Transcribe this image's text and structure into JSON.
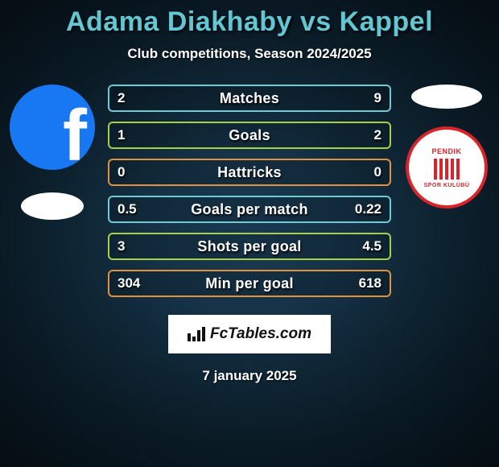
{
  "title_color": "#63c6d0",
  "header": {
    "title": "Adama Diakhaby vs Kappel",
    "subtitle": "Club competitions, Season 2024/2025"
  },
  "left": {
    "avatar_bg": "#1877f2",
    "club_shape_bg": "#ffffff"
  },
  "right": {
    "top_shape_bg": "#ffffff",
    "badge": {
      "border_color": "#d8242a",
      "stripe_color": "#d8242a",
      "text_top": "PENDIK",
      "text_bottom": "SPOR KULÜBÜ"
    }
  },
  "bars": {
    "colors": [
      "#6ccbd4",
      "#a6cf4a",
      "#e0923e",
      "#6ccbd4",
      "#a6cf4a",
      "#e0923e"
    ],
    "rows": [
      {
        "left": "2",
        "label": "Matches",
        "right": "9"
      },
      {
        "left": "1",
        "label": "Goals",
        "right": "2"
      },
      {
        "left": "0",
        "label": "Hattricks",
        "right": "0"
      },
      {
        "left": "0.5",
        "label": "Goals per match",
        "right": "0.22"
      },
      {
        "left": "3",
        "label": "Shots per goal",
        "right": "4.5"
      },
      {
        "left": "304",
        "label": "Min per goal",
        "right": "618"
      }
    ]
  },
  "watermark": "FcTables.com",
  "date": "7 january 2025"
}
